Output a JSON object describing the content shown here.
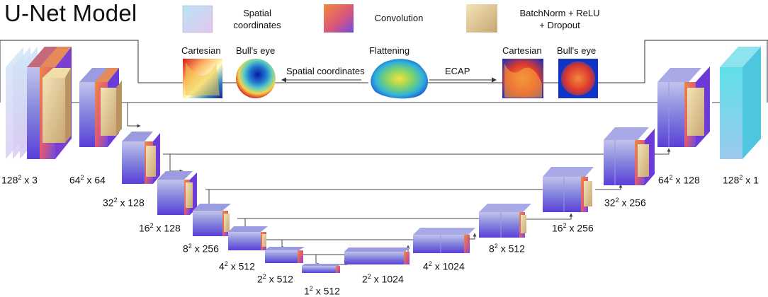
{
  "title": "U-Net Model",
  "legend": {
    "spatial": "Spatial\ncoordinates",
    "conv": "Convolution",
    "bn": "BatchNorm + ReLU\n+ Dropout"
  },
  "panel": {
    "cartesian_left": "Cartesian",
    "bullseye_left": "Bull's eye",
    "flattening": "Flattening",
    "cartesian_right": "Cartesian",
    "bullseye_right": "Bull's eye",
    "arrow_left": "Spatial coordinates",
    "arrow_right": "ECAP"
  },
  "layers": [
    {
      "base": "128",
      "exp": "2",
      "rest": " x 3"
    },
    {
      "base": "64",
      "exp": "2",
      "rest": " x 64"
    },
    {
      "base": "32",
      "exp": "2",
      "rest": " x 128"
    },
    {
      "base": "16",
      "exp": "2",
      "rest": " x 128"
    },
    {
      "base": "8",
      "exp": "2",
      "rest": " x 256"
    },
    {
      "base": "4",
      "exp": "2",
      "rest": " x 512"
    },
    {
      "base": "2",
      "exp": "2",
      "rest": " x 512"
    },
    {
      "base": "1",
      "exp": "2",
      "rest": " x 512"
    },
    {
      "base": "2",
      "exp": "2",
      "rest": " x 1024"
    },
    {
      "base": "4",
      "exp": "2",
      "rest": " x 1024"
    },
    {
      "base": "8",
      "exp": "2",
      "rest": " x 512"
    },
    {
      "base": "16",
      "exp": "2",
      "rest": " x 256"
    },
    {
      "base": "32",
      "exp": "2",
      "rest": " x 256"
    },
    {
      "base": "64",
      "exp": "2",
      "rest": " x 128"
    },
    {
      "base": "128",
      "exp": "2",
      "rest": " x 1"
    }
  ],
  "colors": {
    "spatial": "#c9d8f3",
    "conv": "#e2645a",
    "bn": "#e3cc9a",
    "block": "#6a6ad8",
    "output": "#5fd3e4"
  }
}
